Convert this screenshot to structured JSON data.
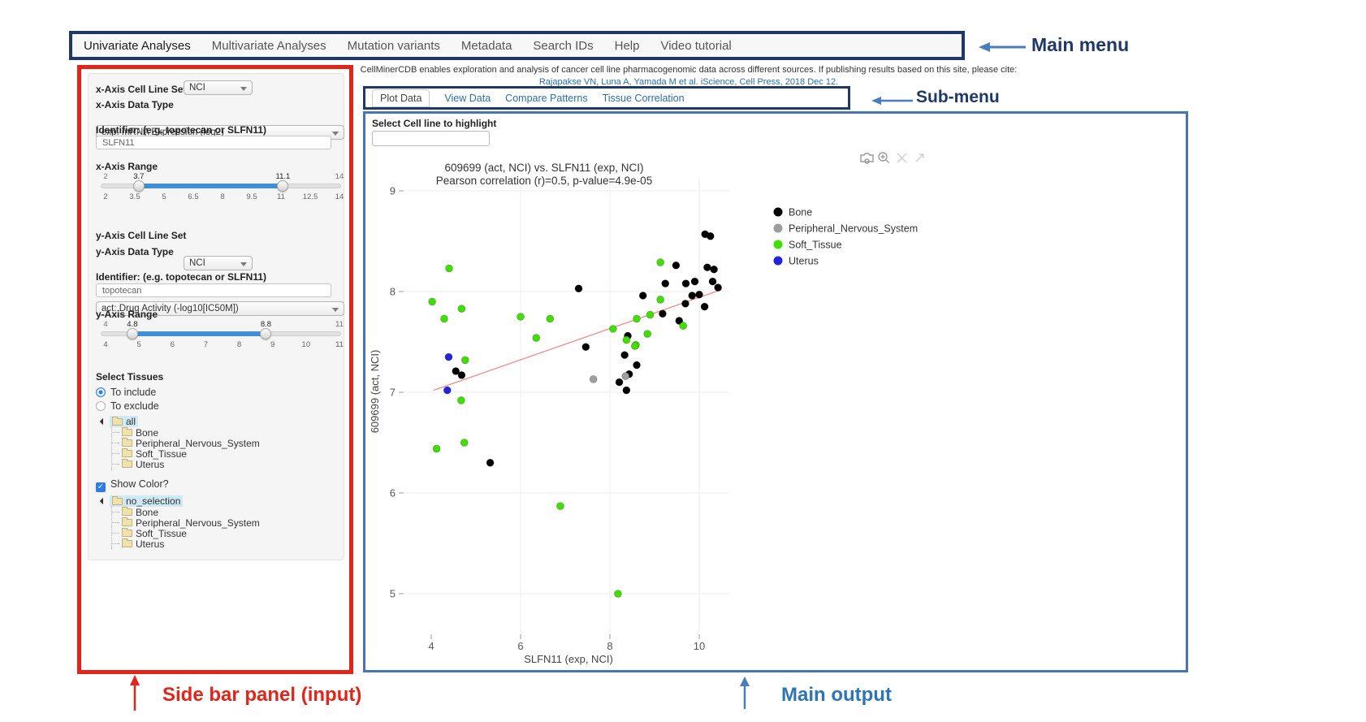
{
  "main_menu": {
    "items": [
      {
        "label": "Univariate Analyses",
        "active": true
      },
      {
        "label": "Multivariate Analyses",
        "active": false
      },
      {
        "label": "Mutation variants",
        "active": false
      },
      {
        "label": "Metadata",
        "active": false
      },
      {
        "label": "Search IDs",
        "active": false
      },
      {
        "label": "Help",
        "active": false
      },
      {
        "label": "Video tutorial",
        "active": false
      }
    ]
  },
  "citation": {
    "line1": "CellMinerCDB enables exploration and analysis of cancer cell line pharmacogenomic data across different sources. If publishing results based on this site, please cite:",
    "line2": "Rajapakse VN, Luna A, Yamada M et al. iScience, Cell Press, 2018 Dec 12."
  },
  "submenu": {
    "tabs": [
      {
        "label": "Plot Data",
        "active": true
      },
      {
        "label": "View Data",
        "active": false
      },
      {
        "label": "Compare Patterns",
        "active": false
      },
      {
        "label": "Tissue Correlation",
        "active": false
      }
    ]
  },
  "annotations": {
    "main_menu_label": "Main menu",
    "submenu_label": "Sub-menu",
    "sidebar_label": "Side bar panel (input)",
    "main_output_label": "Main output",
    "arrow_blue": "#4a7ebb",
    "arrow_red": "#e1251b"
  },
  "sidebar": {
    "x_axis": {
      "cell_line_set_label": "x-Axis Cell Line Set",
      "cell_line_set_value": "NCI",
      "data_type_label": "x-Axis Data Type",
      "data_type_value": "exp: mRNA Expression (log2)",
      "identifier_label": "Identifier: (e.g. topotecan or SLFN11)",
      "identifier_value": "SLFN11",
      "range_label": "x-Axis Range",
      "range": {
        "min": 2,
        "max": 14,
        "low": 3.7,
        "high": 11.1,
        "ticks": [
          "2",
          "3.5",
          "5",
          "6.5",
          "8",
          "9.5",
          "11",
          "12.5",
          "14"
        ]
      }
    },
    "y_axis": {
      "cell_line_set_label": "y-Axis Cell Line Set",
      "cell_line_set_value": "NCI",
      "data_type_label": "y-Axis Data Type",
      "data_type_value": "act: Drug Activity (-log10[IC50M])",
      "identifier_label": "Identifier: (e.g. topotecan or SLFN11)",
      "identifier_value": "topotecan",
      "range_label": "y-Axis Range",
      "range": {
        "min": 4,
        "max": 11,
        "low": 4.8,
        "high": 8.8,
        "ticks": [
          "4",
          "5",
          "6",
          "7",
          "8",
          "9",
          "10",
          "11"
        ]
      }
    },
    "tissues": {
      "section_label": "Select Tissues",
      "include_label": "To include",
      "exclude_label": "To exclude",
      "include_selected": true,
      "tree_all": {
        "root": "all",
        "children": [
          "Bone",
          "Peripheral_Nervous_System",
          "Soft_Tissue",
          "Uterus"
        ]
      },
      "show_color_label": "Show Color?",
      "show_color_checked": true,
      "check_glyph": "✓",
      "tree_color": {
        "root": "no_selection",
        "children": [
          "Bone",
          "Peripheral_Nervous_System",
          "Soft_Tissue",
          "Uterus"
        ]
      }
    }
  },
  "main_output": {
    "highlight_label": "Select Cell line to highlight",
    "highlight_value": "",
    "modebar_icons": [
      "camera-icon",
      "zoom-in-icon",
      "pan-cross-icon",
      "reset-axes-icon"
    ]
  },
  "chart_data": {
    "type": "scatter",
    "title": "609699 (act, NCI) vs. SLFN11 (exp, NCI)",
    "subtitle": "Pearson correlation (r)=0.5, p-value=4.9e-05",
    "xlabel": "SLFN11 (exp, NCI)",
    "ylabel": "609699 (act, NCI)",
    "xlim": [
      3.2,
      10.8
    ],
    "ylim": [
      4.4,
      9.0
    ],
    "x_ticks": [
      4,
      6,
      8,
      10
    ],
    "y_ticks": [
      5,
      6,
      7,
      8,
      9
    ],
    "grid": true,
    "legend_position": "right",
    "trendline": {
      "x1": 4.05,
      "y1": 7.02,
      "x2": 10.5,
      "y2": 8.02,
      "color": "#f28080"
    },
    "series": [
      {
        "name": "Bone",
        "color": "#000000",
        "points": [
          [
            7.3,
            8.03
          ],
          [
            9.48,
            8.26
          ],
          [
            10.13,
            8.57
          ],
          [
            10.25,
            8.55
          ],
          [
            10.18,
            8.24
          ],
          [
            10.33,
            8.22
          ],
          [
            9.24,
            8.08
          ],
          [
            9.7,
            8.08
          ],
          [
            9.9,
            8.1
          ],
          [
            10.3,
            8.1
          ],
          [
            10.42,
            8.04
          ],
          [
            9.84,
            7.96
          ],
          [
            10.0,
            7.97
          ],
          [
            8.74,
            7.96
          ],
          [
            10.12,
            7.85
          ],
          [
            9.69,
            7.88
          ],
          [
            9.18,
            7.78
          ],
          [
            9.55,
            7.71
          ],
          [
            8.4,
            7.56
          ],
          [
            7.46,
            7.45
          ],
          [
            8.33,
            7.37
          ],
          [
            8.6,
            7.27
          ],
          [
            8.43,
            7.18
          ],
          [
            8.21,
            7.1
          ],
          [
            8.37,
            7.02
          ],
          [
            4.55,
            7.21
          ],
          [
            4.68,
            7.17
          ],
          [
            5.32,
            6.3
          ]
        ]
      },
      {
        "name": "Peripheral_Nervous_System",
        "color": "#9e9e9e",
        "points": [
          [
            7.63,
            7.13
          ],
          [
            8.35,
            7.16
          ]
        ]
      },
      {
        "name": "Soft_Tissue",
        "color": "#3fe000",
        "points": [
          [
            4.4,
            8.23
          ],
          [
            4.02,
            7.9
          ],
          [
            4.68,
            7.83
          ],
          [
            4.29,
            7.73
          ],
          [
            6.0,
            7.75
          ],
          [
            6.66,
            7.73
          ],
          [
            6.35,
            7.54
          ],
          [
            9.13,
            8.29
          ],
          [
            9.13,
            7.92
          ],
          [
            8.9,
            7.77
          ],
          [
            8.6,
            7.73
          ],
          [
            9.64,
            7.66
          ],
          [
            8.07,
            7.63
          ],
          [
            8.84,
            7.58
          ],
          [
            8.37,
            7.52
          ],
          [
            8.58,
            7.47
          ],
          [
            8.56,
            7.46
          ],
          [
            4.76,
            7.32
          ],
          [
            4.67,
            6.92
          ],
          [
            4.74,
            6.5
          ],
          [
            4.12,
            6.44
          ],
          [
            6.89,
            5.87
          ],
          [
            8.18,
            5.0
          ]
        ]
      },
      {
        "name": "Uterus",
        "color": "#2323e0",
        "points": [
          [
            4.39,
            7.35
          ],
          [
            4.36,
            7.02
          ]
        ]
      }
    ]
  }
}
